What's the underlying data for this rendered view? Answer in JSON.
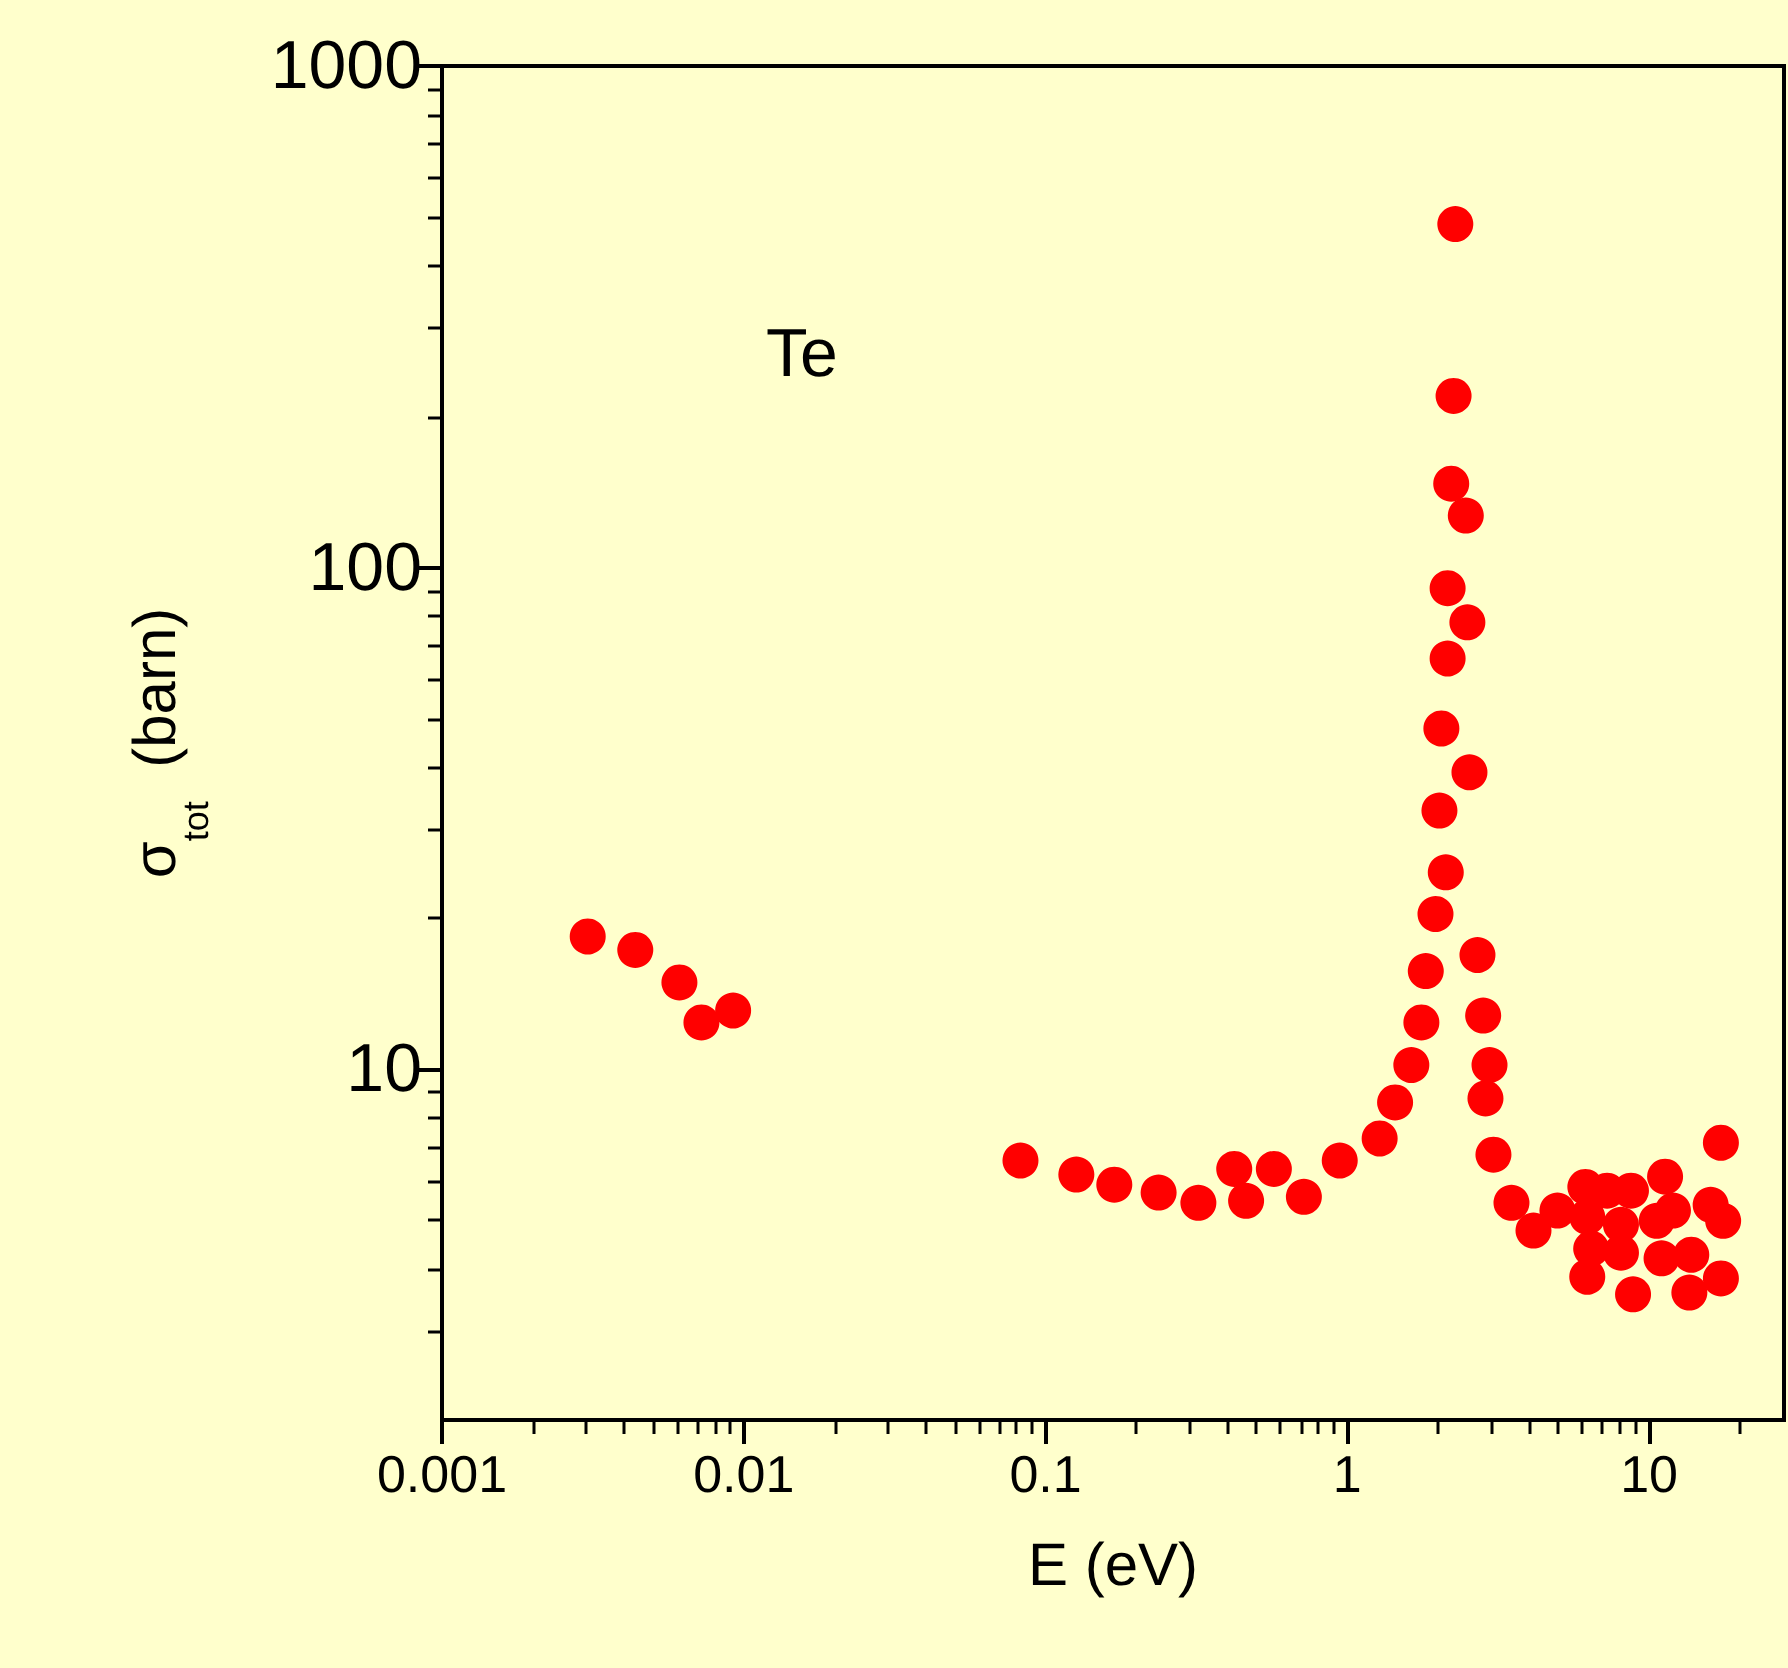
{
  "chart_data": {
    "type": "scatter",
    "xlabel": "E (eV)",
    "ylabel": "σ$_{tot}$  (barn)",
    "annotations": [
      "Te"
    ],
    "log": "xy",
    "marker": "circle",
    "xlim": [
      0.001,
      28
    ],
    "xticks": [
      0.001,
      0.01,
      0.1,
      1,
      10
    ],
    "ylim": [
      2,
      1000
    ],
    "yticks": [
      10,
      100,
      1000
    ],
    "series": [
      {
        "color": "#ff0000",
        "x": [
          0.00304,
          0.00437,
          0.00612,
          0.00724,
          0.00922,
          0.0826,
          0.1265,
          0.169,
          0.237,
          0.321,
          0.422,
          0.462,
          0.571,
          0.718,
          0.944,
          1.28,
          1.44,
          1.63,
          1.76,
          1.82,
          1.96,
          2.12,
          2.02,
          2.05,
          2.15,
          2.15,
          2.21,
          2.25,
          2.28,
          2.47,
          2.5,
          2.54,
          2.7,
          2.82,
          2.96,
          2.87,
          3.05,
          3.5,
          4.14,
          4.97,
          6.15,
          6.24,
          6.43,
          6.24,
          7.26,
          8.71,
          11.3,
          17.3,
          8.07,
          8.07,
          10.6,
          12.0,
          16.0,
          17.6,
          11.0,
          13.8,
          8.85,
          13.6,
          17.3
        ],
        "values": [
          18.4,
          17.3,
          14.9,
          12.4,
          13.1,
          6.58,
          6.17,
          5.89,
          5.68,
          5.42,
          6.33,
          5.47,
          6.33,
          5.57,
          6.58,
          7.28,
          8.59,
          10.2,
          12.4,
          15.7,
          20.4,
          24.7,
          32.8,
          47.8,
          65.9,
          91.0,
          147,
          220,
          484,
          127,
          77.8,
          39.1,
          16.9,
          12.8,
          10.2,
          8.75,
          6.76,
          5.42,
          4.77,
          5.23,
          5.83,
          5.08,
          4.39,
          3.86,
          5.73,
          5.73,
          6.11,
          7.14,
          4.9,
          4.31,
          4.99,
          5.23,
          5.37,
          4.99,
          4.2,
          4.27,
          3.56,
          3.59,
          3.83
        ]
      }
    ]
  }
}
